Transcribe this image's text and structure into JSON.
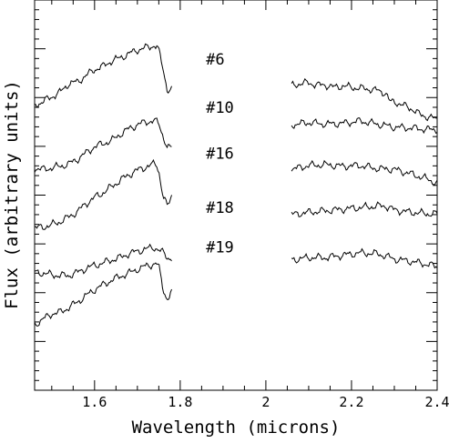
{
  "chart_data": {
    "type": "line",
    "xlabel": "Wavelength (microns)",
    "ylabel": "Flux (arbitrary units)",
    "xlim": [
      1.46,
      2.4
    ],
    "ylim": [
      0,
      1
    ],
    "x_ticks": [
      "1.6",
      "1.8",
      "2",
      "2.2",
      "2.4"
    ],
    "x_tick_values": [
      1.6,
      1.8,
      2.0,
      2.2,
      2.4
    ],
    "x_minor_step": 0.05,
    "y_ticks_labeled": false,
    "grid": false,
    "legend": "none",
    "line_color": "#000000",
    "series": [
      {
        "name": "#6",
        "h_band": {
          "x": [
            1.46,
            1.48,
            1.5,
            1.52,
            1.54,
            1.56,
            1.58,
            1.6,
            1.62,
            1.64,
            1.66,
            1.68,
            1.7,
            1.72,
            1.73,
            1.74,
            1.745,
            1.75,
            1.76,
            1.77,
            1.78
          ],
          "y": [
            0.73,
            0.74,
            0.752,
            0.764,
            0.786,
            0.79,
            0.806,
            0.822,
            0.83,
            0.844,
            0.852,
            0.862,
            0.872,
            0.878,
            0.88,
            0.884,
            0.882,
            0.87,
            0.822,
            0.77,
            0.77
          ]
        },
        "k_band": {
          "x": [
            2.06,
            2.08,
            2.1,
            2.12,
            2.14,
            2.16,
            2.18,
            2.2,
            2.22,
            2.24,
            2.26,
            2.28,
            2.29,
            2.3,
            2.32,
            2.34,
            2.36,
            2.38,
            2.4
          ],
          "y": [
            0.78,
            0.786,
            0.788,
            0.782,
            0.782,
            0.776,
            0.78,
            0.776,
            0.774,
            0.772,
            0.768,
            0.762,
            0.738,
            0.74,
            0.73,
            0.722,
            0.706,
            0.7,
            0.694
          ]
        }
      },
      {
        "name": "#10",
        "h_band": {
          "x": [
            1.46,
            1.48,
            1.5,
            1.52,
            1.54,
            1.56,
            1.58,
            1.6,
            1.62,
            1.64,
            1.66,
            1.68,
            1.7,
            1.72,
            1.74,
            1.75,
            1.76,
            1.77,
            1.78
          ],
          "y": [
            0.568,
            0.566,
            0.57,
            0.574,
            0.58,
            0.592,
            0.608,
            0.624,
            0.632,
            0.64,
            0.656,
            0.67,
            0.68,
            0.688,
            0.69,
            0.684,
            0.652,
            0.62,
            0.622
          ]
        },
        "k_band": {
          "x": [
            2.06,
            2.1,
            2.14,
            2.18,
            2.22,
            2.26,
            2.3,
            2.34,
            2.38,
            2.4
          ],
          "y": [
            0.68,
            0.686,
            0.682,
            0.684,
            0.69,
            0.682,
            0.674,
            0.672,
            0.668,
            0.668
          ]
        }
      },
      {
        "name": "#16",
        "h_band": {
          "x": [
            1.46,
            1.48,
            1.5,
            1.52,
            1.54,
            1.56,
            1.58,
            1.6,
            1.62,
            1.64,
            1.66,
            1.68,
            1.7,
            1.72,
            1.74,
            1.745,
            1.75,
            1.76,
            1.77,
            1.78
          ],
          "y": [
            0.416,
            0.418,
            0.424,
            0.432,
            0.444,
            0.458,
            0.478,
            0.494,
            0.506,
            0.522,
            0.538,
            0.552,
            0.564,
            0.572,
            0.58,
            0.578,
            0.562,
            0.496,
            0.47,
            0.5
          ]
        },
        "k_band": {
          "x": [
            2.06,
            2.1,
            2.14,
            2.18,
            2.22,
            2.26,
            2.3,
            2.34,
            2.38,
            2.4
          ],
          "y": [
            0.566,
            0.576,
            0.578,
            0.574,
            0.576,
            0.568,
            0.566,
            0.554,
            0.54,
            0.53
          ]
        }
      },
      {
        "name": "#18",
        "h_band": {
          "x": [
            1.46,
            1.48,
            1.5,
            1.52,
            1.54,
            1.56,
            1.58,
            1.6,
            1.62,
            1.64,
            1.66,
            1.68,
            1.7,
            1.72,
            1.74,
            1.75,
            1.76,
            1.77,
            1.78
          ],
          "y": [
            0.302,
            0.3,
            0.296,
            0.294,
            0.294,
            0.302,
            0.312,
            0.32,
            0.326,
            0.334,
            0.34,
            0.35,
            0.356,
            0.362,
            0.366,
            0.36,
            0.352,
            0.34,
            0.338
          ]
        },
        "k_band": {
          "x": [
            2.06,
            2.1,
            2.14,
            2.18,
            2.22,
            2.26,
            2.28,
            2.3,
            2.34,
            2.38,
            2.4
          ],
          "y": [
            0.45,
            0.456,
            0.46,
            0.464,
            0.468,
            0.472,
            0.472,
            0.462,
            0.456,
            0.452,
            0.452
          ]
        }
      },
      {
        "name": "#19",
        "h_band": {
          "x": [
            1.46,
            1.48,
            1.5,
            1.52,
            1.54,
            1.56,
            1.58,
            1.6,
            1.62,
            1.64,
            1.66,
            1.68,
            1.7,
            1.72,
            1.74,
            1.745,
            1.75,
            1.76,
            1.77,
            1.78
          ],
          "y": [
            0.168,
            0.182,
            0.196,
            0.2,
            0.212,
            0.226,
            0.242,
            0.258,
            0.27,
            0.282,
            0.292,
            0.3,
            0.31,
            0.318,
            0.324,
            0.324,
            0.316,
            0.26,
            0.232,
            0.252
          ]
        },
        "k_band": {
          "x": [
            2.06,
            2.1,
            2.14,
            2.18,
            2.22,
            2.26,
            2.28,
            2.3,
            2.34,
            2.38,
            2.4
          ],
          "y": [
            0.334,
            0.34,
            0.34,
            0.346,
            0.352,
            0.35,
            0.344,
            0.336,
            0.33,
            0.322,
            0.316
          ]
        }
      }
    ]
  }
}
